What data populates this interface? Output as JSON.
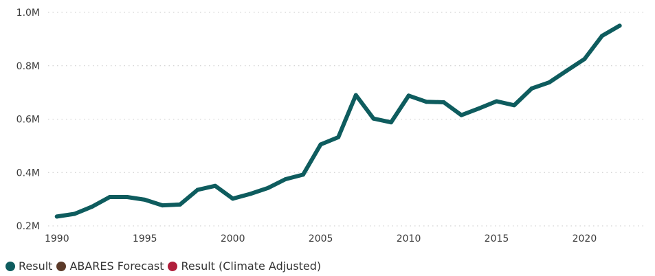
{
  "chart_data": {
    "type": "line",
    "x": [
      1990,
      1991,
      1992,
      1993,
      1994,
      1995,
      1996,
      1997,
      1998,
      1999,
      2000,
      2001,
      2002,
      2003,
      2004,
      2005,
      2006,
      2007,
      2008,
      2009,
      2010,
      2011,
      2012,
      2013,
      2014,
      2015,
      2016,
      2017,
      2018,
      2019,
      2020,
      2021,
      2022
    ],
    "series": [
      {
        "name": "Result",
        "color": "#0e5c5e",
        "values": [
          235000,
          245000,
          272000,
          308000,
          308000,
          298000,
          277000,
          280000,
          335000,
          350000,
          302000,
          320000,
          342000,
          375000,
          392000,
          505000,
          532000,
          690000,
          602000,
          588000,
          688000,
          665000,
          663000,
          615000,
          640000,
          667000,
          652000,
          715000,
          738000,
          782000,
          825000,
          912000,
          950000
        ]
      }
    ],
    "x_ticks": [
      "1990",
      "1995",
      "2000",
      "2005",
      "2010",
      "2015",
      "2020"
    ],
    "x_tick_values": [
      1990,
      1995,
      2000,
      2005,
      2010,
      2015,
      2020
    ],
    "y_ticks": [
      "0.2M",
      "0.4M",
      "0.6M",
      "0.8M",
      "1.0M"
    ],
    "y_tick_values": [
      200000,
      400000,
      600000,
      800000,
      1000000
    ],
    "xlim": [
      1989.5,
      2023.5
    ],
    "ylim": [
      200000,
      1000000
    ],
    "grid": "horizontal dotted",
    "legend_position": "bottom-left",
    "legend": [
      {
        "label": "Result",
        "color": "#0e5c5e"
      },
      {
        "label": "ABARES Forecast",
        "color": "#5b3a29"
      },
      {
        "label": "Result (Climate Adjusted)",
        "color": "#b01f3c"
      }
    ],
    "title": "",
    "xlabel": "",
    "ylabel": ""
  }
}
